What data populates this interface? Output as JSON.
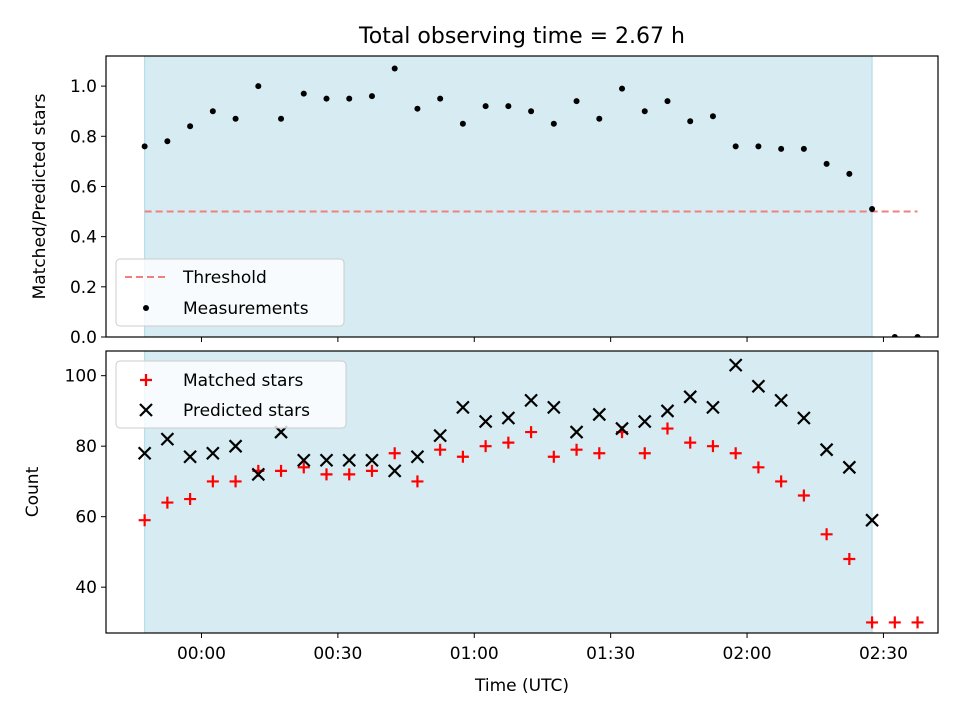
{
  "chart_data": [
    {
      "type": "scatter",
      "title": "Total observing time = 2.67 h",
      "ylabel": "Matched/Predicted stars",
      "xlabel": "",
      "ylim": [
        0,
        1.12
      ],
      "yticks": [
        "0.0",
        "0.2",
        "0.4",
        "0.6",
        "0.8",
        "1.0"
      ],
      "shaded_span_minutes": [
        -12.5,
        147.5
      ],
      "shade_color": "#add8e6",
      "threshold": {
        "name": "Threshold",
        "value": 0.5,
        "x_range_minutes": [
          -12.5,
          157.5
        ],
        "color": "#f08080",
        "style": "dashed"
      },
      "legend": {
        "position": "lower left",
        "entries": [
          "Threshold",
          "Measurements"
        ]
      },
      "series": [
        {
          "name": "Measurements",
          "color": "#000000",
          "marker": "dot",
          "x_minutes": [
            -12.5,
            -7.5,
            -2.5,
            2.5,
            7.5,
            12.5,
            17.5,
            22.5,
            27.5,
            32.5,
            37.5,
            42.5,
            47.5,
            52.5,
            57.5,
            62.5,
            67.5,
            72.5,
            77.5,
            82.5,
            87.5,
            92.5,
            97.5,
            102.5,
            107.5,
            112.5,
            117.5,
            122.5,
            127.5,
            132.5,
            137.5,
            142.5,
            147.5,
            152.5,
            157.5
          ],
          "values": [
            0.76,
            0.78,
            0.84,
            0.9,
            0.87,
            1.0,
            0.87,
            0.97,
            0.95,
            0.95,
            0.96,
            1.07,
            0.91,
            0.95,
            0.85,
            0.92,
            0.92,
            0.9,
            0.85,
            0.94,
            0.87,
            0.99,
            0.9,
            0.94,
            0.86,
            0.88,
            0.76,
            0.76,
            0.75,
            0.75,
            0.69,
            0.65,
            0.51,
            0.0,
            0.0
          ]
        }
      ]
    },
    {
      "type": "scatter",
      "title": "",
      "ylabel": "Count",
      "xlabel": "Time (UTC)",
      "ylim": [
        27,
        107
      ],
      "yticks": [
        "40",
        "60",
        "80",
        "100"
      ],
      "xticks": [
        "00:00",
        "00:30",
        "01:00",
        "01:30",
        "02:00",
        "02:30"
      ],
      "xtick_minutes": [
        0,
        30,
        60,
        90,
        120,
        150
      ],
      "xlim_minutes": [
        -21,
        162
      ],
      "shaded_span_minutes": [
        -12.5,
        147.5
      ],
      "shade_color": "#add8e6",
      "legend": {
        "position": "upper left",
        "entries": [
          "Matched stars",
          "Predicted stars"
        ]
      },
      "series": [
        {
          "name": "Matched stars",
          "color": "#ff0000",
          "marker": "plus",
          "x_minutes": [
            -12.5,
            -7.5,
            -2.5,
            2.5,
            7.5,
            12.5,
            17.5,
            22.5,
            27.5,
            32.5,
            37.5,
            42.5,
            47.5,
            52.5,
            57.5,
            62.5,
            67.5,
            72.5,
            77.5,
            82.5,
            87.5,
            92.5,
            97.5,
            102.5,
            107.5,
            112.5,
            117.5,
            122.5,
            127.5,
            132.5,
            137.5,
            142.5,
            147.5,
            152.5,
            157.5
          ],
          "values": [
            59,
            64,
            65,
            70,
            70,
            73,
            73,
            74,
            72,
            72,
            73,
            78,
            70,
            79,
            77,
            80,
            81,
            84,
            77,
            79,
            78,
            84,
            78,
            85,
            81,
            80,
            78,
            74,
            70,
            66,
            55,
            48,
            30,
            30,
            30
          ]
        },
        {
          "name": "Predicted stars",
          "color": "#000000",
          "marker": "x",
          "x_minutes": [
            -12.5,
            -7.5,
            -2.5,
            2.5,
            7.5,
            12.5,
            17.5,
            22.5,
            27.5,
            32.5,
            37.5,
            42.5,
            47.5,
            52.5,
            57.5,
            62.5,
            67.5,
            72.5,
            77.5,
            82.5,
            87.5,
            92.5,
            97.5,
            102.5,
            107.5,
            112.5,
            117.5,
            122.5,
            127.5,
            132.5,
            137.5,
            142.5,
            147.5
          ],
          "values": [
            78,
            82,
            77,
            78,
            80,
            72,
            84,
            76,
            76,
            76,
            76,
            73,
            77,
            83,
            91,
            87,
            88,
            93,
            91,
            84,
            89,
            85,
            87,
            90,
            94,
            91,
            103,
            97,
            93,
            88,
            79,
            74,
            59
          ]
        }
      ]
    }
  ]
}
